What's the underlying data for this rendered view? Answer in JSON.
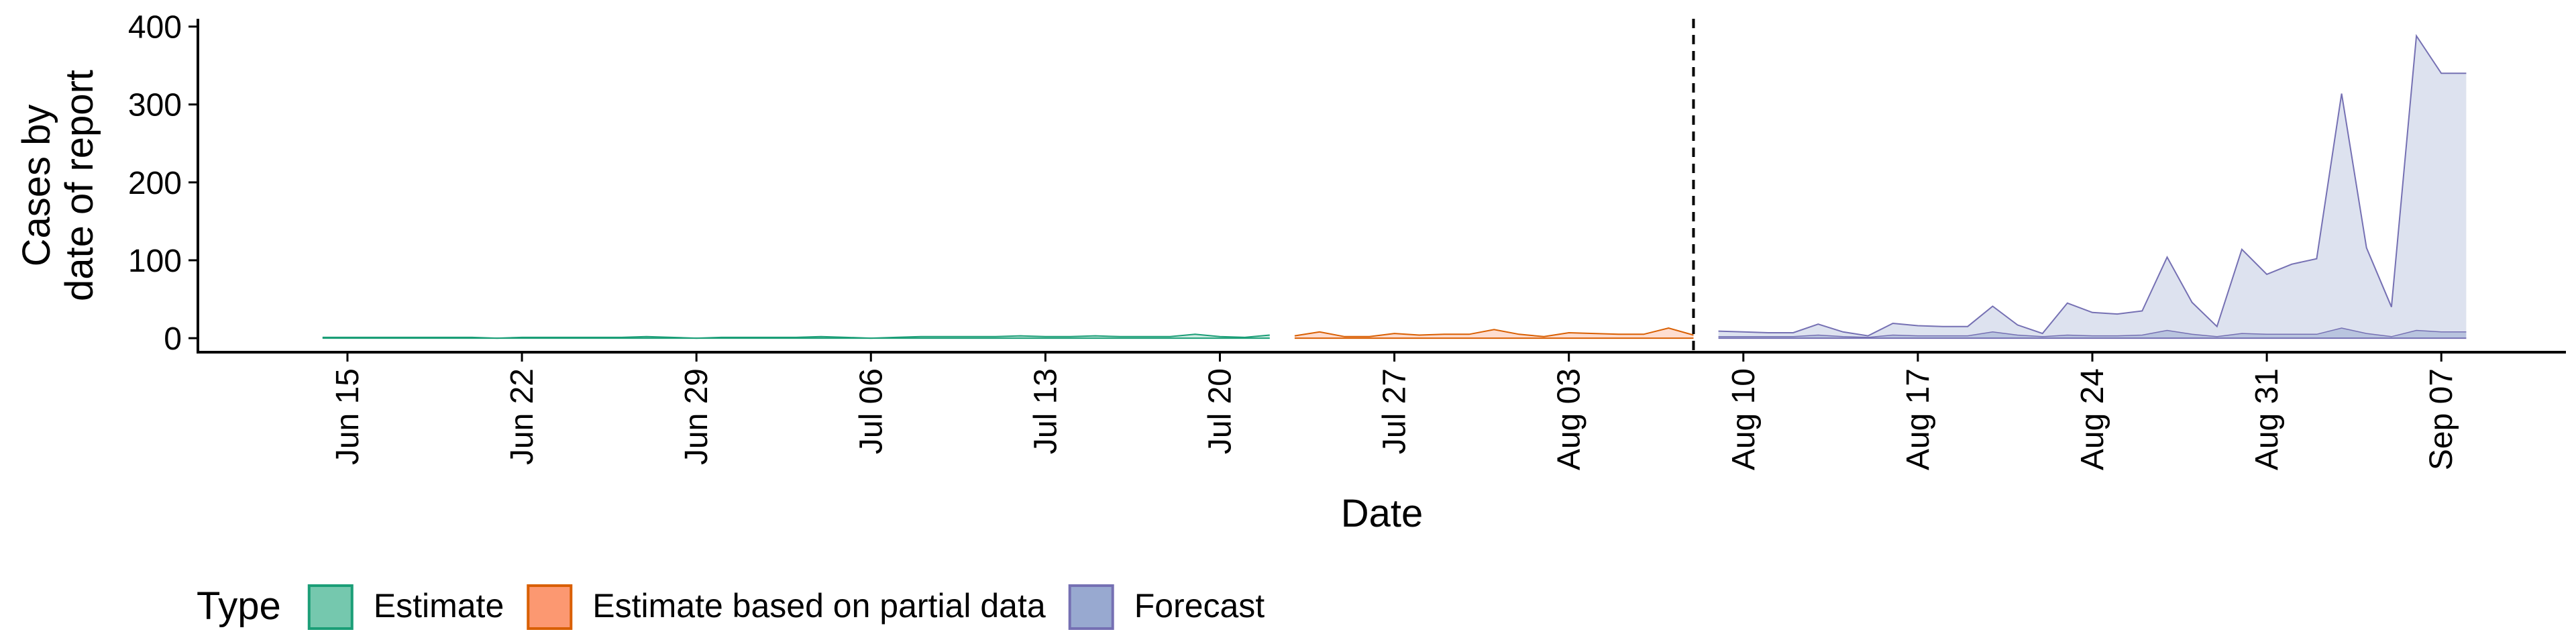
{
  "chart_data": {
    "type": "area",
    "xlabel": "Date",
    "ylabel_lines": [
      "Cases by",
      "date of report"
    ],
    "ylim": [
      -18,
      410
    ],
    "yticks": [
      0,
      100,
      200,
      300,
      400
    ],
    "x_range": [
      "2020-06-09",
      "2020-09-12"
    ],
    "xticks": [
      {
        "date": "2020-06-15",
        "label": "Jun 15"
      },
      {
        "date": "2020-06-22",
        "label": "Jun 22"
      },
      {
        "date": "2020-06-29",
        "label": "Jun 29"
      },
      {
        "date": "2020-07-06",
        "label": "Jul 06"
      },
      {
        "date": "2020-07-13",
        "label": "Jul 13"
      },
      {
        "date": "2020-07-20",
        "label": "Jul 20"
      },
      {
        "date": "2020-07-27",
        "label": "Jul 27"
      },
      {
        "date": "2020-08-03",
        "label": "Aug 03"
      },
      {
        "date": "2020-08-10",
        "label": "Aug 10"
      },
      {
        "date": "2020-08-17",
        "label": "Aug 17"
      },
      {
        "date": "2020-08-24",
        "label": "Aug 24"
      },
      {
        "date": "2020-08-31",
        "label": "Aug 31"
      },
      {
        "date": "2020-09-07",
        "label": "Sep 07"
      }
    ],
    "vline_date": "2020-08-08",
    "legend": {
      "title": "Type",
      "position": "bottom"
    },
    "series": [
      {
        "name": "Estimate",
        "fill": "#66c2a5",
        "stroke": "#1b9e77",
        "x": [
          "2020-06-14",
          "2020-06-15",
          "2020-06-16",
          "2020-06-17",
          "2020-06-18",
          "2020-06-19",
          "2020-06-20",
          "2020-06-21",
          "2020-06-22",
          "2020-06-23",
          "2020-06-24",
          "2020-06-25",
          "2020-06-26",
          "2020-06-27",
          "2020-06-28",
          "2020-06-29",
          "2020-06-30",
          "2020-07-01",
          "2020-07-02",
          "2020-07-03",
          "2020-07-04",
          "2020-07-05",
          "2020-07-06",
          "2020-07-07",
          "2020-07-08",
          "2020-07-09",
          "2020-07-10",
          "2020-07-11",
          "2020-07-12",
          "2020-07-13",
          "2020-07-14",
          "2020-07-15",
          "2020-07-16",
          "2020-07-17",
          "2020-07-18",
          "2020-07-19",
          "2020-07-20",
          "2020-07-21",
          "2020-07-22"
        ],
        "upper": [
          1,
          1,
          1,
          1,
          1,
          1,
          1,
          0,
          1,
          1,
          1,
          1,
          1,
          2,
          1,
          0,
          1,
          1,
          1,
          1,
          2,
          1,
          0,
          1,
          2,
          2,
          2,
          2,
          3,
          2,
          2,
          3,
          2,
          2,
          2,
          5,
          2,
          1,
          4
        ],
        "lower": [
          0,
          0,
          0,
          0,
          0,
          0,
          0,
          0,
          0,
          0,
          0,
          0,
          0,
          0,
          0,
          0,
          0,
          0,
          0,
          0,
          0,
          0,
          0,
          0,
          0,
          0,
          0,
          0,
          0,
          0,
          0,
          0,
          0,
          0,
          0,
          0,
          0,
          0,
          0
        ]
      },
      {
        "name": "Estimate based on partial data",
        "fill": "#fc8d62",
        "stroke": "#d95f02",
        "x": [
          "2020-07-23",
          "2020-07-24",
          "2020-07-25",
          "2020-07-26",
          "2020-07-27",
          "2020-07-28",
          "2020-07-29",
          "2020-07-30",
          "2020-07-31",
          "2020-08-01",
          "2020-08-02",
          "2020-08-03",
          "2020-08-04",
          "2020-08-05",
          "2020-08-06",
          "2020-08-07",
          "2020-08-08"
        ],
        "upper": [
          3,
          8,
          2,
          2,
          6,
          4,
          5,
          5,
          11,
          5,
          2,
          7,
          6,
          5,
          5,
          13,
          4
        ],
        "lower": [
          0,
          0,
          0,
          0,
          0,
          0,
          0,
          0,
          0,
          0,
          0,
          0,
          0,
          0,
          0,
          0,
          0
        ]
      },
      {
        "name": "Forecast",
        "fill": "#8da0cb",
        "stroke": "#7570b3",
        "x": [
          "2020-08-09",
          "2020-08-10",
          "2020-08-11",
          "2020-08-12",
          "2020-08-13",
          "2020-08-14",
          "2020-08-15",
          "2020-08-16",
          "2020-08-17",
          "2020-08-18",
          "2020-08-19",
          "2020-08-20",
          "2020-08-21",
          "2020-08-22",
          "2020-08-23",
          "2020-08-24",
          "2020-08-25",
          "2020-08-26",
          "2020-08-27",
          "2020-08-28",
          "2020-08-29",
          "2020-08-30",
          "2020-08-31",
          "2020-09-01",
          "2020-09-02",
          "2020-09-03",
          "2020-09-04",
          "2020-09-05",
          "2020-09-06",
          "2020-09-07",
          "2020-09-08"
        ],
        "upper": [
          9,
          8,
          7,
          7,
          18,
          8,
          3,
          19,
          16,
          15,
          15,
          41,
          17,
          6,
          45,
          33,
          31,
          35,
          104,
          46,
          15,
          114,
          82,
          95,
          102,
          314,
          116,
          40,
          388,
          340,
          340
        ],
        "inner": [
          2,
          2,
          2,
          2,
          4,
          2,
          1,
          4,
          3,
          3,
          3,
          8,
          4,
          2,
          4,
          3,
          3,
          4,
          10,
          5,
          2,
          6,
          5,
          5,
          5,
          13,
          6,
          2,
          10,
          8,
          8
        ],
        "lower": [
          0,
          0,
          0,
          0,
          0,
          0,
          0,
          0,
          0,
          0,
          0,
          0,
          0,
          0,
          0,
          0,
          0,
          0,
          0,
          0,
          0,
          0,
          0,
          0,
          0,
          0,
          0,
          0,
          0,
          0,
          0
        ]
      }
    ]
  }
}
